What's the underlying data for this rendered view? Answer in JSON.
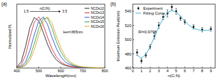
{
  "chart_data": [
    {
      "type": "line",
      "title": "(a)",
      "x_label": "Wavelength(nm)",
      "y_label": "Normalized PL",
      "x": [
        400,
        420,
        440,
        460,
        480,
        500,
        520,
        540,
        560,
        580,
        600,
        620,
        640,
        660,
        680,
        700,
        750,
        800
      ],
      "series": [
        {
          "name": "NCDs12",
          "color": "#222222",
          "values": [
            0.02,
            0.12,
            0.42,
            0.8,
            0.99,
            0.92,
            0.7,
            0.46,
            0.28,
            0.16,
            0.09,
            0.05,
            0.03,
            0.02,
            0.01,
            0.01,
            0,
            0
          ]
        },
        {
          "name": "NCDs13",
          "color": "#e0303a",
          "values": [
            0.01,
            0.06,
            0.25,
            0.6,
            0.9,
            1.0,
            0.85,
            0.6,
            0.38,
            0.22,
            0.12,
            0.07,
            0.04,
            0.02,
            0.01,
            0.01,
            0,
            0
          ]
        },
        {
          "name": "NCDs14",
          "color": "#3050d8",
          "values": [
            0.01,
            0.03,
            0.12,
            0.35,
            0.66,
            0.92,
            1.0,
            0.85,
            0.6,
            0.38,
            0.22,
            0.12,
            0.07,
            0.04,
            0.02,
            0.01,
            0,
            0
          ]
        },
        {
          "name": "NCDs15",
          "color": "#2aa84a",
          "values": [
            0,
            0.02,
            0.07,
            0.22,
            0.48,
            0.78,
            0.97,
            0.98,
            0.78,
            0.52,
            0.32,
            0.18,
            0.1,
            0.05,
            0.03,
            0.02,
            0,
            0
          ]
        },
        {
          "name": "NCDs16",
          "color": "#e8a020",
          "values": [
            0,
            0.01,
            0.05,
            0.15,
            0.36,
            0.65,
            0.9,
            1.0,
            0.88,
            0.62,
            0.4,
            0.23,
            0.13,
            0.07,
            0.04,
            0.02,
            0.01,
            0
          ]
        }
      ],
      "xlim": [
        400,
        800
      ],
      "xticks": [
        400,
        500,
        600,
        700,
        800
      ],
      "ylim": [
        0,
        1.25
      ],
      "tick_labels": "x",
      "legend": "upper right",
      "annotations": [
        "1.5",
        "n(C/N)",
        "3.5",
        "λex=365nm"
      ]
    },
    {
      "type": "scatter",
      "title": "(b)",
      "x_label": "n(C:N)",
      "y_label": "Maximum Emission Peak(nm)",
      "series": [
        {
          "name": "Experiment",
          "type": "scatter",
          "color": "#000000",
          "marker": "square",
          "x": [
            0.5,
            1,
            1.5,
            2,
            2.5,
            3,
            3.5,
            4,
            4.5,
            5,
            5.5,
            6,
            7,
            8,
            9
          ],
          "values": [
            482,
            470,
            478,
            490,
            505,
            520,
            532,
            537,
            546,
            540,
            530,
            525,
            518,
            514,
            515
          ],
          "errors": [
            4,
            3,
            3,
            3,
            4,
            4,
            4,
            5,
            4,
            4,
            3,
            3,
            3,
            3,
            3
          ]
        },
        {
          "name": "Fitting Curve",
          "type": "line",
          "color": "#3cb4d8",
          "x": [
            0.5,
            1,
            1.5,
            2,
            2.5,
            3,
            3.5,
            4,
            4.5,
            5,
            5.5,
            6,
            6.5,
            7,
            7.5,
            8,
            8.5,
            9
          ],
          "values": [
            478,
            474,
            479,
            490,
            504,
            518,
            530,
            538,
            541,
            539,
            533,
            526,
            520,
            516,
            514,
            513,
            513,
            514
          ]
        }
      ],
      "xlim": [
        0,
        9.5
      ],
      "xticks": [
        0,
        1,
        2,
        3,
        4,
        5,
        6,
        7,
        8,
        9
      ],
      "ylim": [
        460,
        550
      ],
      "yticks": [
        460,
        480,
        500,
        520,
        540
      ],
      "legend": "upper left",
      "annotations": [
        "R²=0.9798"
      ]
    }
  ]
}
